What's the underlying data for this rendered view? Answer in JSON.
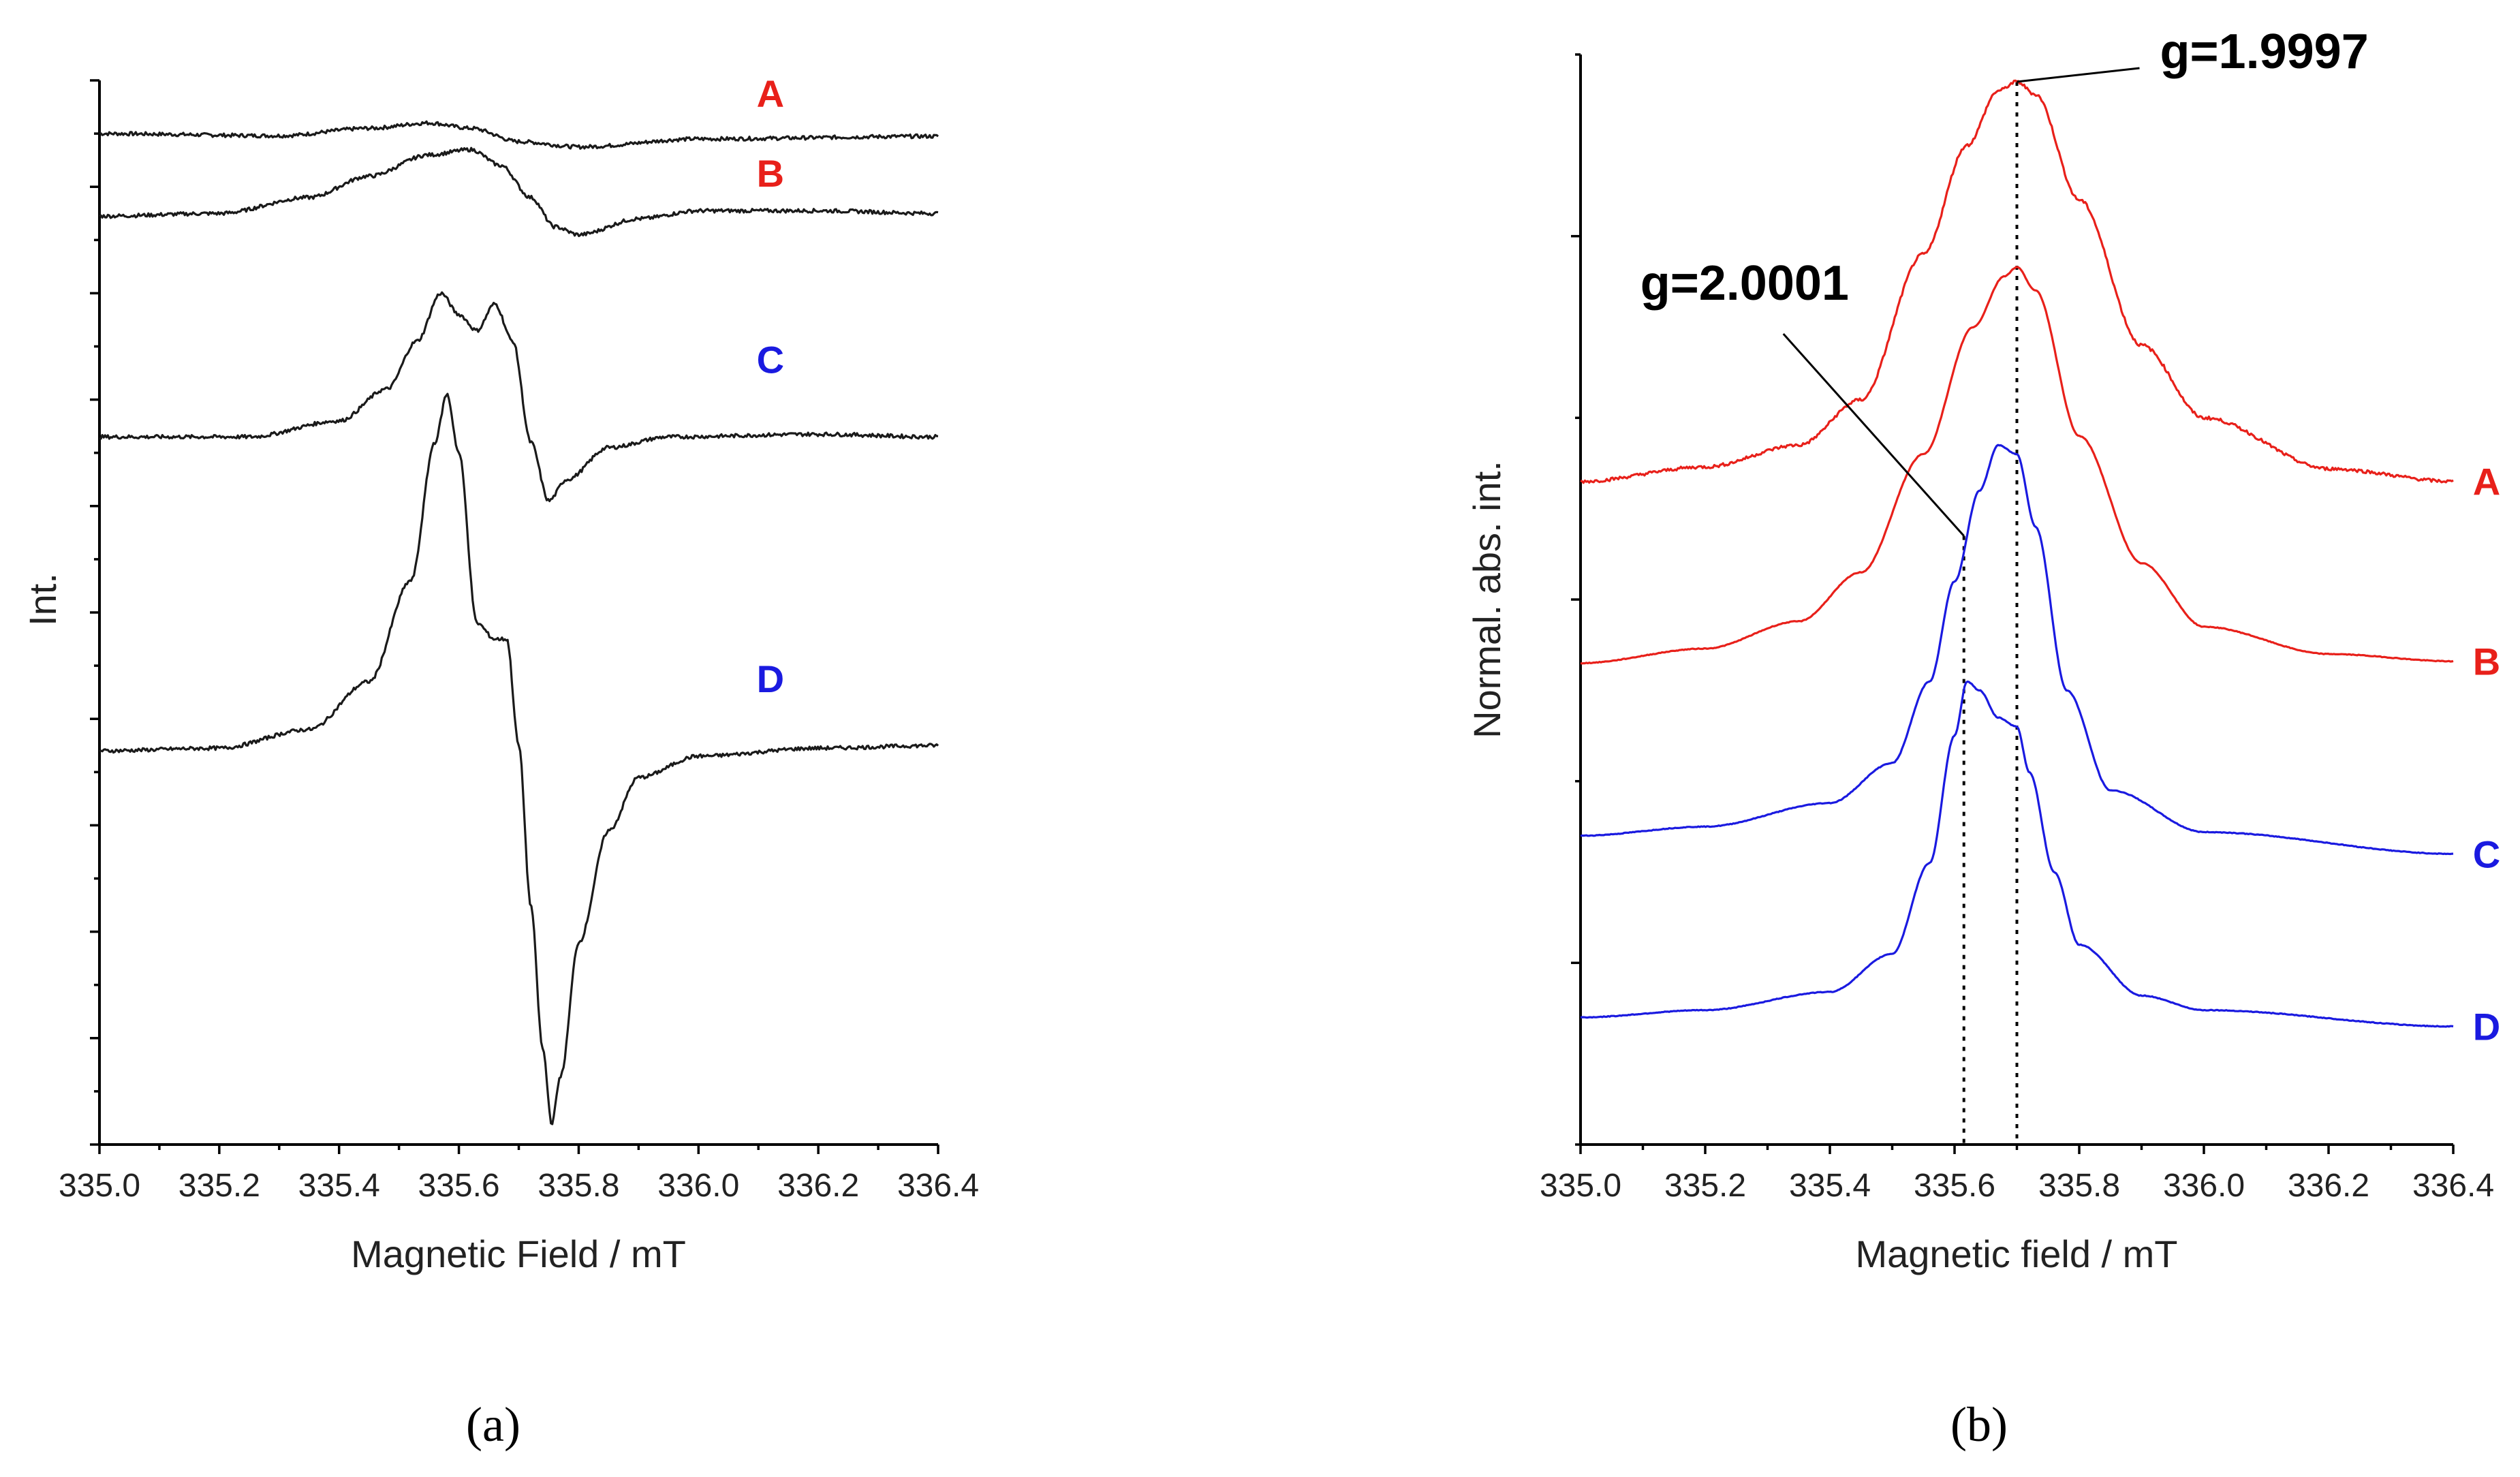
{
  "colors": {
    "red": "#e8201a",
    "blue": "#1a1ae0",
    "black": "#1a1a1a"
  },
  "chart_data": [
    {
      "panel": "a",
      "type": "line",
      "caption": "(a)",
      "xlabel": "Magnetic Field / mT",
      "ylabel": "Int.",
      "xlim": [
        335.0,
        336.4
      ],
      "xticks": [
        "335.0",
        "335.2",
        "335.4",
        "335.6",
        "335.8",
        "336.0",
        "336.2",
        "336.4"
      ],
      "yticks_count": 20,
      "ylim": [
        0,
        20
      ],
      "series": [
        {
          "name": "A",
          "color": "black",
          "label_color": "red",
          "label_pos": [
            336.12,
            19.5
          ],
          "points": [
            [
              335.0,
              19.0
            ],
            [
              335.3,
              18.96
            ],
            [
              335.45,
              19.1
            ],
            [
              335.55,
              19.2
            ],
            [
              335.62,
              19.1
            ],
            [
              335.7,
              18.85
            ],
            [
              335.8,
              18.75
            ],
            [
              336.0,
              18.9
            ],
            [
              336.4,
              18.95
            ]
          ]
        },
        {
          "name": "B",
          "color": "black",
          "label_color": "red",
          "label_pos": [
            336.12,
            18.0
          ],
          "points": [
            [
              335.0,
              17.45
            ],
            [
              335.2,
              17.5
            ],
            [
              335.35,
              17.8
            ],
            [
              335.45,
              18.2
            ],
            [
              335.55,
              18.6
            ],
            [
              335.62,
              18.7
            ],
            [
              335.67,
              18.4
            ],
            [
              335.72,
              17.8
            ],
            [
              335.76,
              17.25
            ],
            [
              335.8,
              17.1
            ],
            [
              335.9,
              17.4
            ],
            [
              336.0,
              17.55
            ],
            [
              336.2,
              17.55
            ],
            [
              336.4,
              17.5
            ]
          ]
        },
        {
          "name": "C",
          "color": "black",
          "label_color": "blue",
          "label_pos": [
            336.12,
            14.5
          ],
          "points": [
            [
              335.0,
              13.3
            ],
            [
              335.25,
              13.3
            ],
            [
              335.4,
              13.6
            ],
            [
              335.48,
              14.2
            ],
            [
              335.53,
              15.1
            ],
            [
              335.57,
              16.0
            ],
            [
              335.6,
              15.6
            ],
            [
              335.63,
              15.3
            ],
            [
              335.66,
              15.8
            ],
            [
              335.69,
              15.1
            ],
            [
              335.72,
              13.2
            ],
            [
              335.75,
              12.1
            ],
            [
              335.78,
              12.5
            ],
            [
              335.85,
              13.1
            ],
            [
              335.95,
              13.3
            ],
            [
              336.2,
              13.35
            ],
            [
              336.4,
              13.3
            ]
          ]
        },
        {
          "name": "D",
          "color": "black",
          "label_color": "blue",
          "label_pos": [
            336.12,
            8.5
          ],
          "points": [
            [
              335.0,
              7.4
            ],
            [
              335.2,
              7.45
            ],
            [
              335.35,
              7.8
            ],
            [
              335.45,
              8.7
            ],
            [
              335.52,
              10.6
            ],
            [
              335.56,
              13.2
            ],
            [
              335.58,
              14.1
            ],
            [
              335.6,
              13.0
            ],
            [
              335.63,
              9.8
            ],
            [
              335.66,
              9.5
            ],
            [
              335.68,
              9.5
            ],
            [
              335.7,
              7.5
            ],
            [
              335.72,
              4.5
            ],
            [
              335.74,
              1.8
            ],
            [
              335.755,
              0.4
            ],
            [
              335.77,
              1.3
            ],
            [
              335.8,
              3.8
            ],
            [
              335.85,
              5.9
            ],
            [
              335.9,
              6.9
            ],
            [
              336.0,
              7.3
            ],
            [
              336.2,
              7.45
            ],
            [
              336.4,
              7.5
            ]
          ]
        }
      ]
    },
    {
      "panel": "b",
      "type": "line",
      "caption": "(b)",
      "xlabel": "Magnetic field / mT",
      "ylabel": "Normal. abs. int.",
      "xlim": [
        335.0,
        336.4
      ],
      "xticks": [
        "335.0",
        "335.2",
        "335.4",
        "335.6",
        "335.8",
        "336.0",
        "336.2",
        "336.4"
      ],
      "yticks_count": 6,
      "ylim": [
        0,
        6
      ],
      "series": [
        {
          "name": "A",
          "color": "red",
          "label_color": "red",
          "points": [
            [
              335.0,
              3.65
            ],
            [
              335.2,
              3.73
            ],
            [
              335.35,
              3.85
            ],
            [
              335.45,
              4.1
            ],
            [
              335.55,
              4.9
            ],
            [
              335.62,
              5.5
            ],
            [
              335.67,
              5.8
            ],
            [
              335.7,
              5.85
            ],
            [
              335.73,
              5.78
            ],
            [
              335.8,
              5.2
            ],
            [
              335.9,
              4.4
            ],
            [
              336.0,
              4.0
            ],
            [
              336.2,
              3.72
            ],
            [
              336.4,
              3.65
            ]
          ]
        },
        {
          "name": "B",
          "color": "red",
          "label_color": "red",
          "points": [
            [
              335.0,
              2.65
            ],
            [
              335.2,
              2.73
            ],
            [
              335.35,
              2.88
            ],
            [
              335.45,
              3.15
            ],
            [
              335.55,
              3.8
            ],
            [
              335.63,
              4.5
            ],
            [
              335.68,
              4.78
            ],
            [
              335.7,
              4.83
            ],
            [
              335.73,
              4.7
            ],
            [
              335.8,
              3.9
            ],
            [
              335.9,
              3.2
            ],
            [
              336.0,
              2.85
            ],
            [
              336.2,
              2.7
            ],
            [
              336.4,
              2.66
            ]
          ]
        },
        {
          "name": "C",
          "color": "blue",
          "label_color": "blue",
          "points": [
            [
              335.0,
              1.7
            ],
            [
              335.2,
              1.75
            ],
            [
              335.4,
              1.88
            ],
            [
              335.5,
              2.1
            ],
            [
              335.56,
              2.55
            ],
            [
              335.6,
              3.1
            ],
            [
              335.64,
              3.6
            ],
            [
              335.67,
              3.85
            ],
            [
              335.7,
              3.8
            ],
            [
              335.73,
              3.4
            ],
            [
              335.78,
              2.5
            ],
            [
              335.85,
              1.95
            ],
            [
              336.0,
              1.72
            ],
            [
              336.4,
              1.6
            ]
          ]
        },
        {
          "name": "D",
          "color": "blue",
          "label_color": "blue",
          "points": [
            [
              335.0,
              0.7
            ],
            [
              335.2,
              0.74
            ],
            [
              335.4,
              0.84
            ],
            [
              335.5,
              1.05
            ],
            [
              335.56,
              1.55
            ],
            [
              335.6,
              2.25
            ],
            [
              335.62,
              2.55
            ],
            [
              335.64,
              2.5
            ],
            [
              335.67,
              2.35
            ],
            [
              335.7,
              2.3
            ],
            [
              335.72,
              2.05
            ],
            [
              335.76,
              1.5
            ],
            [
              335.8,
              1.1
            ],
            [
              335.9,
              0.82
            ],
            [
              336.0,
              0.74
            ],
            [
              336.4,
              0.65
            ]
          ]
        }
      ],
      "annotations": [
        {
          "text": "g=1.9997",
          "x": 335.7,
          "peak_y": 5.85
        },
        {
          "text": "g=2.0001",
          "x": 335.615,
          "peak_y": 3.35
        }
      ]
    }
  ]
}
